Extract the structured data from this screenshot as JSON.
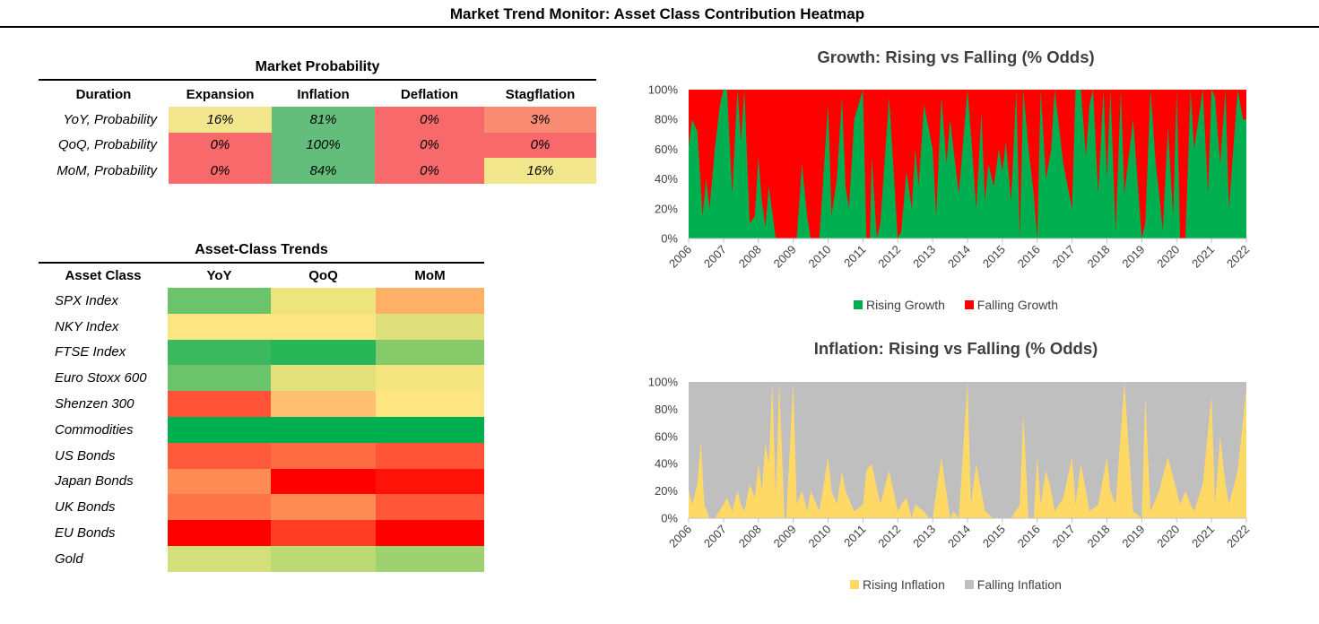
{
  "page": {
    "title": "Market Trend Monitor: Asset Class Contribution Heatmap"
  },
  "market_probability": {
    "caption": "Market Probability",
    "headers": [
      "Duration",
      "Expansion",
      "Inflation",
      "Deflation",
      "Stagflation"
    ],
    "rows": [
      {
        "label": "YoY, Probability",
        "values": [
          "16%",
          "81%",
          "0%",
          "3%"
        ],
        "colors": [
          "#f2e68c",
          "#63be7b",
          "#f8696b",
          "#fa8c74"
        ]
      },
      {
        "label": "QoQ, Probability",
        "values": [
          "0%",
          "100%",
          "0%",
          "0%"
        ],
        "colors": [
          "#f8696b",
          "#63be7b",
          "#f8696b",
          "#f8696b"
        ]
      },
      {
        "label": "MoM, Probability",
        "values": [
          "0%",
          "84%",
          "0%",
          "16%"
        ],
        "colors": [
          "#f8696b",
          "#63be7b",
          "#f8696b",
          "#f2e68c"
        ]
      }
    ]
  },
  "asset_trends": {
    "caption": "Asset-Class Trends",
    "headers": [
      "Asset Class",
      "YoY",
      "QoQ",
      "MoM"
    ],
    "rows": [
      {
        "label": "SPX Index",
        "colors": [
          "#6cc46a",
          "#ece47c",
          "#ffb066"
        ]
      },
      {
        "label": "NKY Index",
        "colors": [
          "#fde582",
          "#fde582",
          "#dfe07c"
        ]
      },
      {
        "label": "FTSE Index",
        "colors": [
          "#3cb95e",
          "#26b657",
          "#86ca6a"
        ]
      },
      {
        "label": "Euro Stoxx 600",
        "colors": [
          "#6cc46a",
          "#e4e07c",
          "#f4e57f"
        ]
      },
      {
        "label": "Shenzen 300",
        "colors": [
          "#ff5236",
          "#ffbf70",
          "#fde581"
        ]
      },
      {
        "label": "Commodities",
        "colors": [
          "#00b050",
          "#00b050",
          "#00b050"
        ]
      },
      {
        "label": "US Bonds",
        "colors": [
          "#ff5a3b",
          "#ff6c42",
          "#ff5337"
        ]
      },
      {
        "label": "Japan Bonds",
        "colors": [
          "#ff8b55",
          "#ff0000",
          "#ff1208"
        ]
      },
      {
        "label": "UK Bonds",
        "colors": [
          "#ff7549",
          "#ff8c55",
          "#ff5538"
        ]
      },
      {
        "label": "EU Bonds",
        "colors": [
          "#ff0000",
          "#ff3d24",
          "#ff0000"
        ]
      },
      {
        "label": "Gold",
        "colors": [
          "#d2df7a",
          "#bcd975",
          "#9ed16f"
        ]
      }
    ]
  },
  "chart_data": [
    {
      "type": "area",
      "stacked": true,
      "title": "Growth: Rising vs Falling (% Odds)",
      "xlabel": "",
      "ylabel": "",
      "x_tick_labels": [
        "2006",
        "2007",
        "2008",
        "2009",
        "2010",
        "2011",
        "2012",
        "2013",
        "2014",
        "2015",
        "2016",
        "2017",
        "2018",
        "2019",
        "2020",
        "2021",
        "2022"
      ],
      "x_range": [
        2006,
        2022
      ],
      "y_range": [
        0,
        100
      ],
      "y_tick_labels": [
        "0%",
        "20%",
        "40%",
        "60%",
        "80%",
        "100%"
      ],
      "y_ticks": [
        0,
        20,
        40,
        60,
        80,
        100
      ],
      "legend_position": "bottom",
      "series": [
        {
          "name": "Rising Growth",
          "color": "#00b050"
        },
        {
          "name": "Falling Growth",
          "color": "#ff0000"
        }
      ],
      "x": [
        2006.0,
        2006.1,
        2006.25,
        2006.4,
        2006.5,
        2006.6,
        2006.75,
        2006.9,
        2007.0,
        2007.1,
        2007.25,
        2007.4,
        2007.5,
        2007.6,
        2007.75,
        2007.9,
        2008.0,
        2008.1,
        2008.2,
        2008.3,
        2008.5,
        2008.6,
        2008.75,
        2009.0,
        2009.1,
        2009.25,
        2009.4,
        2009.5,
        2009.75,
        2010.0,
        2010.1,
        2010.25,
        2010.4,
        2010.5,
        2010.6,
        2010.75,
        2011.0,
        2011.1,
        2011.2,
        2011.25,
        2011.4,
        2011.5,
        2011.75,
        2012.0,
        2012.1,
        2012.25,
        2012.4,
        2012.5,
        2012.6,
        2012.75,
        2013.0,
        2013.1,
        2013.25,
        2013.4,
        2013.5,
        2013.75,
        2014.0,
        2014.1,
        2014.25,
        2014.4,
        2014.5,
        2014.6,
        2014.75,
        2014.9,
        2015.0,
        2015.1,
        2015.25,
        2015.4,
        2015.5,
        2015.6,
        2015.75,
        2015.9,
        2016.0,
        2016.1,
        2016.25,
        2016.4,
        2016.5,
        2016.75,
        2017.0,
        2017.1,
        2017.25,
        2017.4,
        2017.5,
        2017.6,
        2017.75,
        2017.9,
        2018.0,
        2018.1,
        2018.25,
        2018.4,
        2018.5,
        2018.75,
        2019.0,
        2019.1,
        2019.25,
        2019.4,
        2019.5,
        2019.6,
        2019.75,
        2019.9,
        2020.0,
        2020.1,
        2020.25,
        2020.4,
        2020.5,
        2020.75,
        2020.9,
        2021.0,
        2021.1,
        2021.25,
        2021.4,
        2021.5,
        2021.75,
        2021.9,
        2022.0
      ],
      "values": [
        62,
        80,
        72,
        15,
        40,
        20,
        60,
        90,
        100,
        100,
        30,
        100,
        65,
        100,
        10,
        15,
        55,
        25,
        8,
        35,
        0,
        0,
        0,
        0,
        0,
        50,
        15,
        0,
        0,
        90,
        15,
        40,
        95,
        35,
        20,
        80,
        100,
        0,
        0,
        55,
        0,
        10,
        95,
        0,
        5,
        45,
        20,
        60,
        35,
        90,
        60,
        15,
        95,
        50,
        80,
        30,
        100,
        70,
        20,
        85,
        25,
        50,
        35,
        60,
        45,
        65,
        25,
        100,
        0,
        100,
        60,
        30,
        0,
        100,
        40,
        60,
        100,
        50,
        20,
        100,
        100,
        55,
        90,
        100,
        30,
        100,
        40,
        100,
        5,
        100,
        30,
        80,
        0,
        10,
        100,
        50,
        30,
        5,
        75,
        15,
        100,
        0,
        0,
        100,
        60,
        100,
        30,
        100,
        95,
        50,
        100,
        20,
        100,
        80,
        80
      ]
    },
    {
      "type": "area",
      "stacked": true,
      "title": "Inflation: Rising vs Falling  (% Odds)",
      "xlabel": "",
      "ylabel": "",
      "x_tick_labels": [
        "2006",
        "2007",
        "2008",
        "2009",
        "2010",
        "2011",
        "2012",
        "2013",
        "2014",
        "2015",
        "2016",
        "2017",
        "2018",
        "2019",
        "2020",
        "2021",
        "2022"
      ],
      "x_range": [
        2006,
        2022
      ],
      "y_range": [
        0,
        100
      ],
      "y_tick_labels": [
        "0%",
        "20%",
        "40%",
        "60%",
        "80%",
        "100%"
      ],
      "y_ticks": [
        0,
        20,
        40,
        60,
        80,
        100
      ],
      "legend_position": "bottom",
      "series": [
        {
          "name": "Rising Inflation",
          "color": "#ffd966"
        },
        {
          "name": "Falling Inflation",
          "color": "#bfbfbf"
        }
      ],
      "x": [
        2006.0,
        2006.1,
        2006.25,
        2006.35,
        2006.45,
        2006.6,
        2006.75,
        2007.0,
        2007.1,
        2007.25,
        2007.4,
        2007.5,
        2007.6,
        2007.75,
        2007.9,
        2008.0,
        2008.1,
        2008.2,
        2008.3,
        2008.4,
        2008.5,
        2008.6,
        2008.75,
        2008.8,
        2009.0,
        2009.1,
        2009.25,
        2009.4,
        2009.5,
        2009.75,
        2010.0,
        2010.1,
        2010.25,
        2010.4,
        2010.5,
        2010.75,
        2011.0,
        2011.1,
        2011.25,
        2011.5,
        2011.75,
        2012.0,
        2012.1,
        2012.25,
        2012.4,
        2012.5,
        2012.75,
        2012.9,
        2013.0,
        2013.25,
        2013.5,
        2013.6,
        2013.75,
        2014.0,
        2014.1,
        2014.25,
        2014.5,
        2014.75,
        2015.0,
        2015.25,
        2015.5,
        2015.6,
        2015.75,
        2015.9,
        2016.0,
        2016.1,
        2016.25,
        2016.4,
        2016.5,
        2016.75,
        2017.0,
        2017.1,
        2017.25,
        2017.4,
        2017.5,
        2017.75,
        2018.0,
        2018.1,
        2018.25,
        2018.5,
        2018.75,
        2019.0,
        2019.1,
        2019.25,
        2019.5,
        2019.75,
        2020.0,
        2020.1,
        2020.25,
        2020.4,
        2020.5,
        2020.75,
        2021.0,
        2021.1,
        2021.25,
        2021.4,
        2021.5,
        2021.75,
        2022.0
      ],
      "values": [
        20,
        10,
        25,
        57,
        10,
        0,
        0,
        10,
        15,
        5,
        20,
        10,
        5,
        25,
        15,
        40,
        20,
        55,
        40,
        100,
        15,
        100,
        0,
        0,
        100,
        10,
        20,
        5,
        20,
        5,
        45,
        20,
        10,
        35,
        20,
        5,
        10,
        35,
        40,
        10,
        35,
        5,
        10,
        15,
        0,
        10,
        5,
        0,
        0,
        45,
        0,
        5,
        0,
        100,
        10,
        40,
        5,
        0,
        0,
        0,
        10,
        77,
        0,
        0,
        45,
        10,
        35,
        20,
        5,
        15,
        45,
        10,
        40,
        20,
        5,
        10,
        45,
        20,
        10,
        100,
        5,
        0,
        90,
        5,
        20,
        45,
        20,
        10,
        20,
        10,
        5,
        25,
        90,
        10,
        60,
        25,
        10,
        35,
        95
      ]
    }
  ]
}
